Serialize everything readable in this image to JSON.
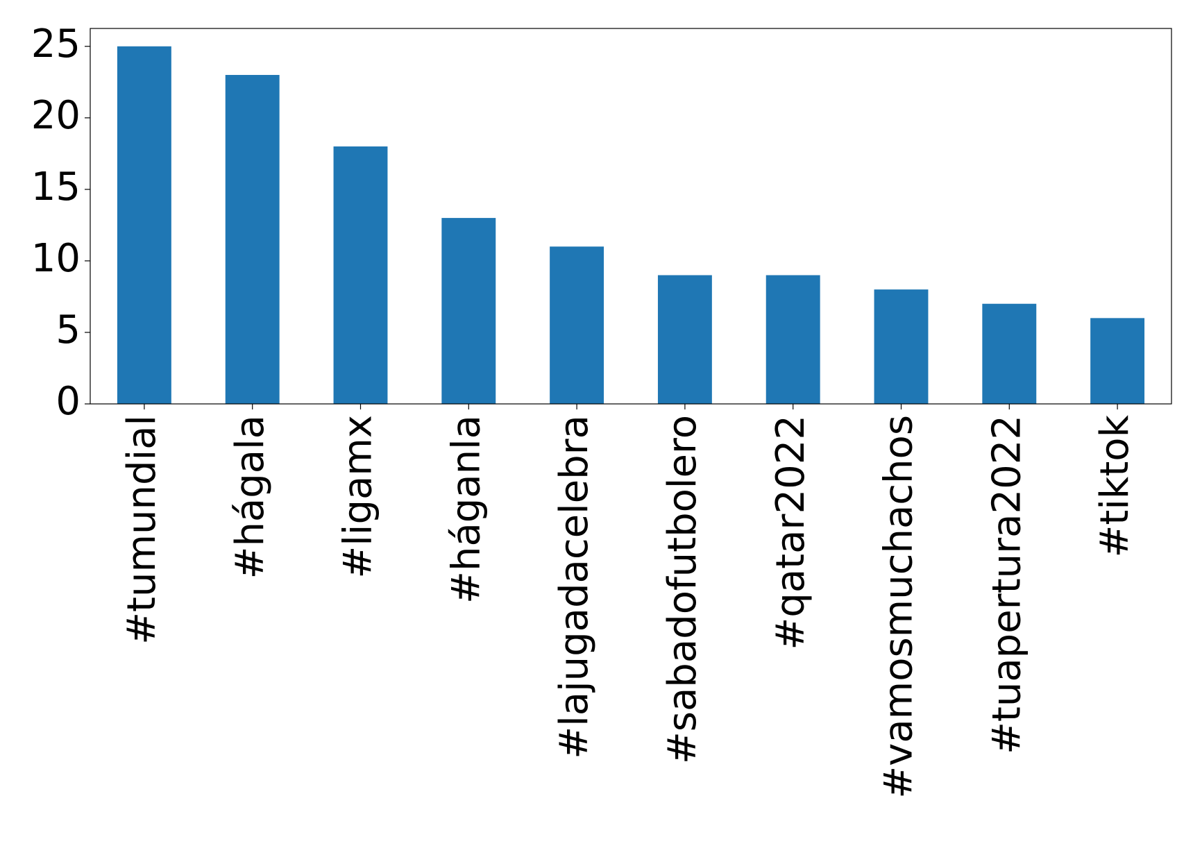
{
  "chart_data": {
    "type": "bar",
    "categories": [
      "#tumundial",
      "#hágala",
      "#ligamx",
      "#háganla",
      "#lajugadacelebra",
      "#sabadofutbolero",
      "#qatar2022",
      "#vamosmuchachos",
      "#tuapertura2022",
      "#tiktok"
    ],
    "values": [
      25,
      23,
      18,
      13,
      11,
      9,
      9,
      8,
      7,
      6
    ],
    "color": "#1f77b4",
    "ylim": [
      0,
      26.25
    ],
    "yticks": [
      0,
      5,
      10,
      15,
      20,
      25
    ]
  }
}
